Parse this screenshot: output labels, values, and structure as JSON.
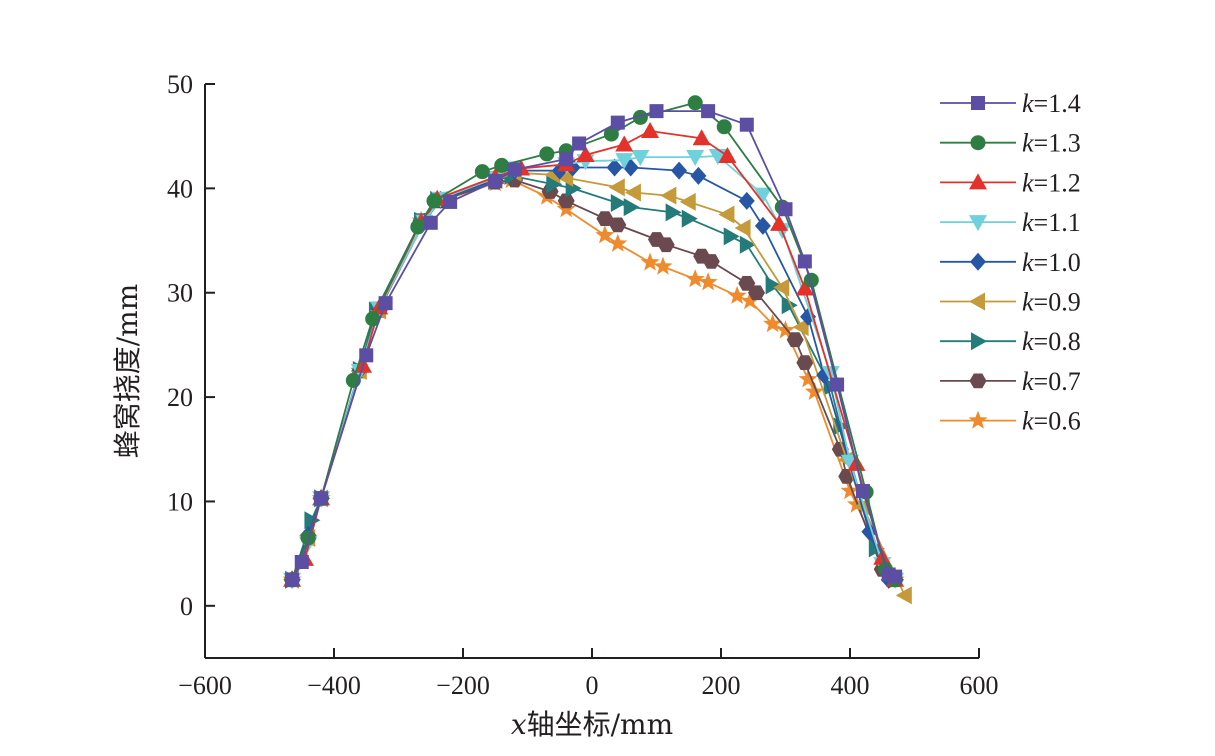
{
  "chart_data": {
    "type": "line",
    "xlabel_italic": "x",
    "xlabel_rest": "轴坐标/mm",
    "ylabel": "蜂窝挠度/mm",
    "xlim": [
      -600,
      600
    ],
    "ylim": [
      -5,
      50
    ],
    "xticks": [
      -600,
      -400,
      -200,
      0,
      200,
      400,
      600
    ],
    "yticks": [
      0,
      10,
      20,
      30,
      40,
      50
    ],
    "xtick_labels": [
      "−600",
      "−400",
      "−200",
      "0",
      "200",
      "400",
      "600"
    ],
    "ytick_labels": [
      "0",
      "10",
      "20",
      "30",
      "40",
      "50"
    ],
    "grid": false,
    "legend_position": "right",
    "series": [
      {
        "name": "k=1.4",
        "label_italic": "k",
        "label_rest": "=1.4",
        "color": "#5b4ea3",
        "marker": "square",
        "x": [
          -465,
          -450,
          -420,
          -350,
          -320,
          -250,
          -220,
          -150,
          -120,
          -40,
          -20,
          40,
          100,
          180,
          240,
          300,
          330,
          380,
          420,
          460,
          470
        ],
        "y": [
          2.5,
          4.2,
          10.3,
          24,
          29,
          36.7,
          38.7,
          40.7,
          41.8,
          42.8,
          44.3,
          46.3,
          47.4,
          47.4,
          46.1,
          38,
          33,
          21.2,
          11,
          3,
          2.8
        ]
      },
      {
        "name": "k=1.3",
        "label_italic": "k",
        "label_rest": "=1.3",
        "color": "#2e7d43",
        "marker": "circle",
        "x": [
          -465,
          -440,
          -420,
          -370,
          -340,
          -270,
          -245,
          -170,
          -140,
          -70,
          -40,
          30,
          75,
          160,
          205,
          295,
          340,
          425,
          455,
          470
        ],
        "y": [
          2.5,
          6.5,
          10.3,
          21.6,
          27.5,
          36.3,
          38.8,
          41.6,
          42.2,
          43.3,
          43.6,
          45.2,
          46.8,
          48.2,
          45.9,
          38.2,
          31.2,
          10.9,
          3.5,
          2.5
        ]
      },
      {
        "name": "k=1.2",
        "label_italic": "k",
        "label_rest": "=1.2",
        "color": "#e3312b",
        "marker": "triangle-up",
        "x": [
          -465,
          -445,
          -420,
          -355,
          -330,
          -265,
          -240,
          -150,
          -110,
          -40,
          -10,
          50,
          90,
          170,
          210,
          290,
          330,
          410,
          450,
          470
        ],
        "y": [
          2.5,
          4.5,
          10.3,
          23,
          28.6,
          36.8,
          39,
          41.1,
          41.9,
          42.3,
          43.2,
          44.2,
          45.5,
          44.8,
          43.1,
          36.6,
          30.4,
          13.6,
          4.6,
          2.5
        ]
      },
      {
        "name": "k=1.1",
        "label_italic": "k",
        "label_rest": "=1.1",
        "color": "#6fd1dc",
        "marker": "triangle-down",
        "x": [
          -465,
          -440,
          -420,
          -360,
          -330,
          -260,
          -235,
          -150,
          -120,
          -40,
          -10,
          50,
          75,
          160,
          195,
          265,
          295,
          370,
          400,
          450,
          470
        ],
        "y": [
          2.5,
          6,
          10.3,
          22.5,
          28.5,
          36.8,
          39,
          41,
          41.9,
          42.3,
          42.6,
          42.7,
          43,
          43,
          43.1,
          39.4,
          36,
          22.3,
          13.8,
          4,
          2.5
        ]
      },
      {
        "name": "k=1.0",
        "label_italic": "k",
        "label_rest": "=1.0",
        "color": "#2756a5",
        "marker": "diamond",
        "x": [
          -465,
          -440,
          -420,
          -360,
          -330,
          -260,
          -235,
          -150,
          -120,
          -50,
          -30,
          35,
          60,
          135,
          165,
          240,
          265,
          335,
          360,
          430,
          460
        ],
        "y": [
          2.5,
          6.8,
          10.3,
          22.6,
          28.4,
          36.8,
          38.9,
          40.8,
          41.7,
          41.7,
          42,
          42,
          42,
          41.7,
          41.2,
          38.8,
          36.4,
          27.7,
          22.1,
          7.1,
          2.5
        ]
      },
      {
        "name": "k=0.9",
        "label_italic": "k",
        "label_rest": "=0.9",
        "color": "#c49a3a",
        "marker": "triangle-left",
        "x": [
          -465,
          -440,
          -420,
          -360,
          -330,
          -260,
          -235,
          -150,
          -120,
          -60,
          -40,
          40,
          65,
          120,
          150,
          210,
          235,
          295,
          325,
          395,
          420,
          485
        ],
        "y": [
          2.5,
          6.5,
          10.3,
          22.5,
          28.3,
          36.9,
          38.9,
          40.8,
          41.5,
          41.3,
          41,
          40.1,
          39.6,
          39.3,
          38.7,
          37.5,
          36.2,
          30.5,
          26.7,
          14,
          9.5,
          1
        ]
      },
      {
        "name": "k=0.8",
        "label_italic": "k",
        "label_rest": "=0.8",
        "color": "#237b7a",
        "marker": "triangle-right",
        "x": [
          -465,
          -435,
          -420,
          -360,
          -335,
          -265,
          -240,
          -150,
          -125,
          -60,
          -30,
          40,
          60,
          125,
          150,
          215,
          240,
          280,
          305,
          370,
          385,
          440,
          470
        ],
        "y": [
          2.5,
          8.2,
          10.3,
          22.6,
          28.3,
          36.9,
          38.9,
          40.7,
          41.2,
          40.4,
          40,
          38.6,
          38.2,
          37.7,
          37.1,
          35.4,
          34.6,
          30.7,
          28.8,
          21,
          17.2,
          5.5,
          2.5
        ]
      },
      {
        "name": "k=0.7",
        "label_italic": "k",
        "label_rest": "=0.7",
        "color": "#6a4a4f",
        "marker": "hexagon",
        "x": [
          -465,
          -440,
          -420,
          -360,
          -330,
          -265,
          -235,
          -150,
          -120,
          -65,
          -40,
          20,
          40,
          100,
          115,
          170,
          185,
          240,
          255,
          315,
          330,
          385,
          395,
          450,
          470
        ],
        "y": [
          2.5,
          6.5,
          10.3,
          22.5,
          28.3,
          36.9,
          38.8,
          40.6,
          40.8,
          39.7,
          38.8,
          37.1,
          36.5,
          35.1,
          34.6,
          33.5,
          33,
          30.9,
          30,
          25.5,
          23.3,
          15,
          12.4,
          3.5,
          2.5
        ]
      },
      {
        "name": "k=0.6",
        "label_italic": "k",
        "label_rest": "=0.6",
        "color": "#ef8b2d",
        "marker": "star",
        "x": [
          -465,
          -440,
          -420,
          -360,
          -330,
          -265,
          -235,
          -150,
          -125,
          -70,
          -40,
          20,
          40,
          90,
          110,
          160,
          180,
          225,
          245,
          280,
          300,
          335,
          345,
          400,
          410,
          460,
          470
        ],
        "y": [
          2.5,
          6.5,
          10.3,
          22.5,
          28.3,
          36.9,
          38.8,
          40.5,
          40.8,
          39.2,
          38,
          35.5,
          34.7,
          32.9,
          32.5,
          31.3,
          31,
          29.7,
          29.2,
          27,
          26.4,
          21.7,
          20.5,
          11,
          9.7,
          3,
          2.5
        ]
      }
    ]
  }
}
